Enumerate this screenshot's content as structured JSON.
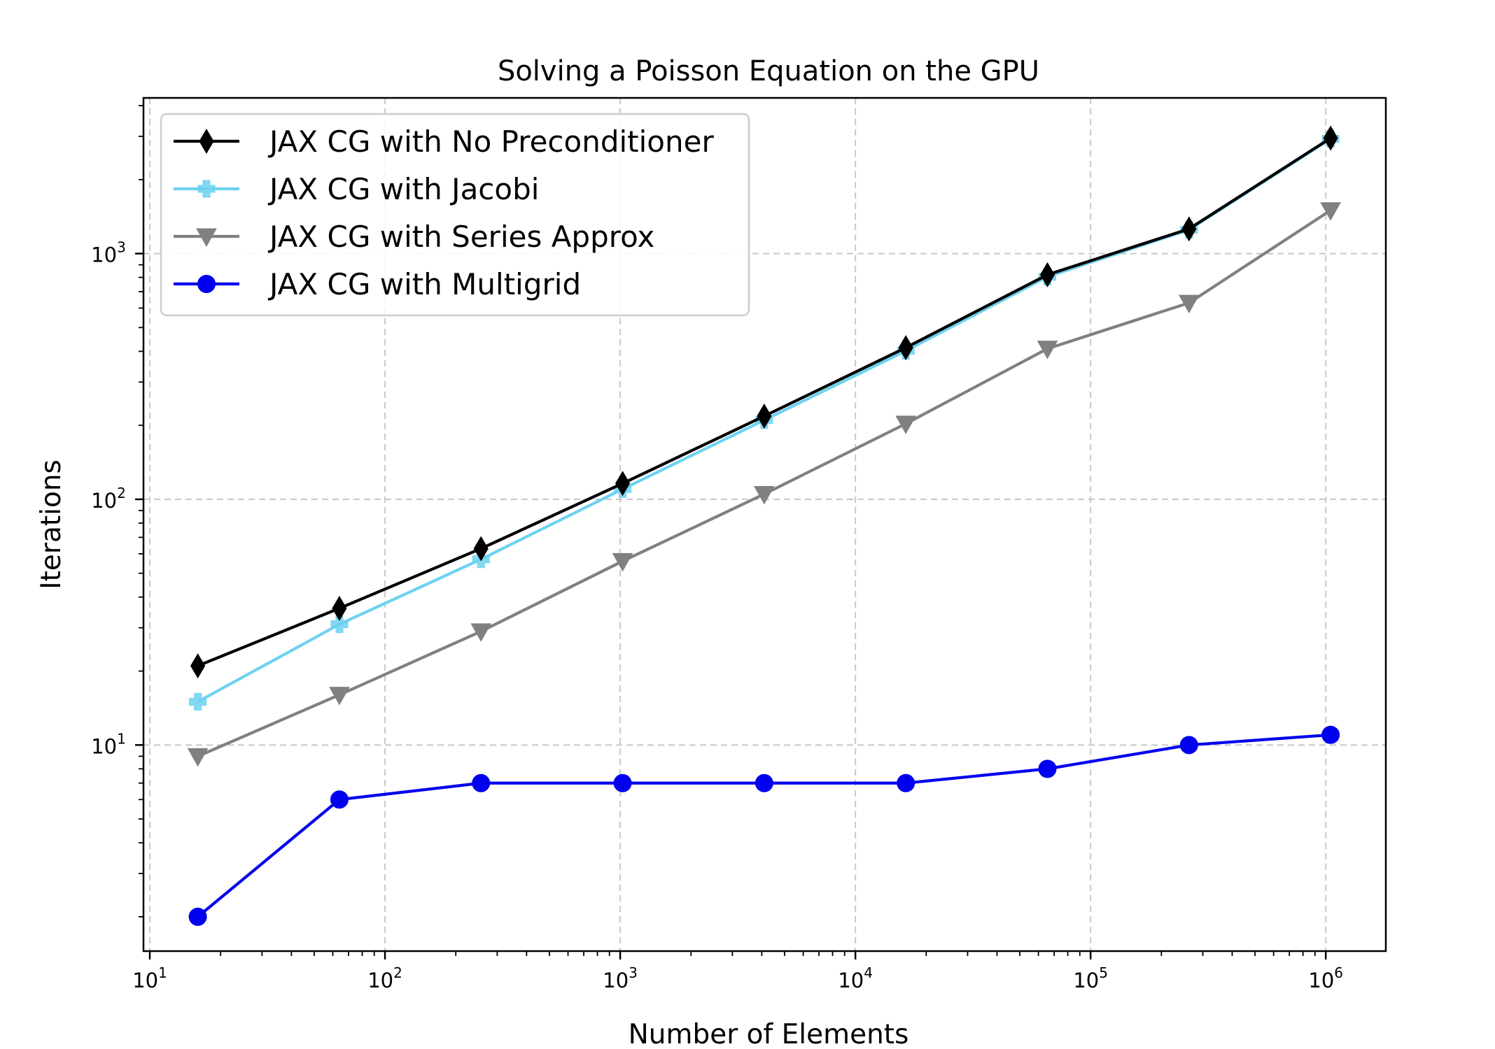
{
  "chart_data": {
    "type": "line",
    "title": "Solving a Poisson Equation on the GPU",
    "xlabel": "Number of Elements",
    "ylabel": "Iterations",
    "xscale": "log",
    "yscale": "log",
    "xlim": [
      9.4,
      1800000
    ],
    "ylim": [
      1.45,
      4300
    ],
    "grid": true,
    "legend_position": "top-left",
    "x": [
      16,
      64,
      256,
      1024,
      4096,
      16384,
      65536,
      262144,
      1048576
    ],
    "x_ticks": [
      {
        "base": "10",
        "exp": "1",
        "value": 10
      },
      {
        "base": "10",
        "exp": "2",
        "value": 100
      },
      {
        "base": "10",
        "exp": "3",
        "value": 1000
      },
      {
        "base": "10",
        "exp": "4",
        "value": 10000
      },
      {
        "base": "10",
        "exp": "5",
        "value": 100000
      },
      {
        "base": "10",
        "exp": "6",
        "value": 1000000
      }
    ],
    "y_ticks": [
      {
        "base": "10",
        "exp": "1",
        "value": 10
      },
      {
        "base": "10",
        "exp": "2",
        "value": 100
      },
      {
        "base": "10",
        "exp": "3",
        "value": 1000
      }
    ],
    "series": [
      {
        "name": "JAX CG with No Preconditioner",
        "color": "#000000",
        "marker": "diamond",
        "values": [
          21,
          36,
          63,
          116,
          218,
          414,
          820,
          1260,
          2950
        ]
      },
      {
        "name": "JAX CG with Jacobi",
        "color": "#6dd2f0",
        "marker": "plus",
        "values": [
          15,
          31,
          57,
          110,
          210,
          402,
          805,
          1250,
          2930
        ]
      },
      {
        "name": "JAX CG with Series Approx",
        "color": "#808080",
        "marker": "triangle-down",
        "values": [
          9,
          16,
          29,
          56,
          105,
          203,
          410,
          630,
          1500
        ]
      },
      {
        "name": "JAX CG with Multigrid",
        "color": "#0000ee",
        "marker": "circle",
        "values": [
          2,
          6,
          7,
          7,
          7,
          7,
          8,
          10,
          11
        ]
      }
    ]
  }
}
